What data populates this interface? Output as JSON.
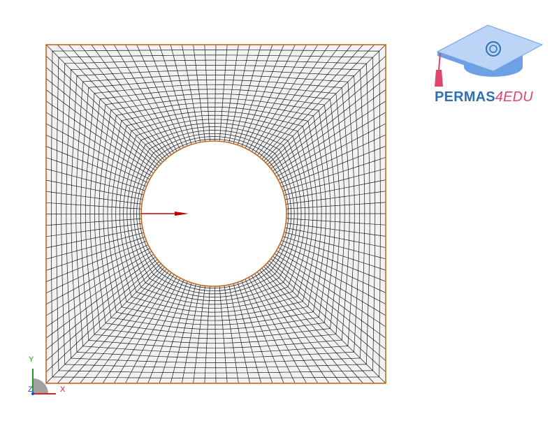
{
  "viewport": {
    "background": "#ffffff",
    "mesh": {
      "line_color": "#1a1a1a",
      "fill_color": "#f2f2f2",
      "boundary_color": "#c8671e",
      "radial_divisions_per_side": 30,
      "layers": 23
    },
    "load_arrow": {
      "color": "#c00000",
      "direction": "+x"
    }
  },
  "logo": {
    "text_main": "PERMAS",
    "text_suffix": "4EDU",
    "colors": {
      "main": "#2f6fb8",
      "suffix": "#e0456e",
      "hat": "#6ea0e6",
      "hat_light": "#bcd5f6",
      "tassel": "#e0456e"
    }
  },
  "triad": {
    "x_label": "X",
    "y_label": "Y",
    "z_label": "Z",
    "colors": {
      "x": "#e02020",
      "y": "#20a020",
      "z": "#2040e0"
    }
  }
}
